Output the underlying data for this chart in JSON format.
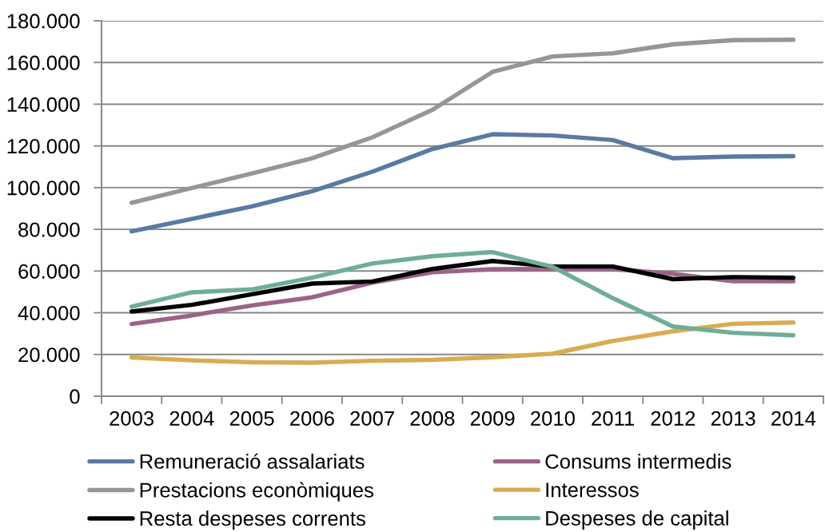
{
  "chart_data": {
    "type": "line",
    "categories": [
      "2003",
      "2004",
      "2005",
      "2006",
      "2007",
      "2008",
      "2009",
      "2010",
      "2011",
      "2012",
      "2013",
      "2014"
    ],
    "series": [
      {
        "name": "Remuneració assalariats",
        "color": "#5a7aa3",
        "values": [
          79000,
          85000,
          91000,
          98300,
          107600,
          118500,
          125600,
          125000,
          122800,
          114100,
          114900,
          115100
        ]
      },
      {
        "name": "Consums intermedis",
        "color": "#9b6487",
        "values": [
          34600,
          38700,
          43500,
          47400,
          54400,
          59400,
          60900,
          61000,
          61000,
          58700,
          55100,
          55100
        ]
      },
      {
        "name": "Prestacions econòmiques",
        "color": "#93969a",
        "values": [
          92700,
          99800,
          106800,
          114100,
          124100,
          137300,
          155500,
          162900,
          164400,
          168700,
          170700,
          170900
        ]
      },
      {
        "name": "Interessos",
        "color": "#d8ac52",
        "values": [
          18600,
          17200,
          16300,
          16100,
          17000,
          17400,
          18700,
          20400,
          26500,
          31100,
          34700,
          35300
        ]
      },
      {
        "name": "Resta despeses corrents",
        "color": "#000000",
        "values": [
          40600,
          43800,
          48900,
          54000,
          55000,
          61000,
          64800,
          62200,
          62200,
          56100,
          57100,
          56800
        ]
      },
      {
        "name": "Despeses de capital",
        "color": "#70ae96",
        "values": [
          42900,
          49800,
          51200,
          56800,
          63600,
          67100,
          69100,
          62000,
          47000,
          33400,
          30400,
          29200
        ]
      }
    ],
    "ylim": [
      0,
      180000
    ],
    "yticks": [
      0,
      {
        "value": 20000,
        "label": "20.000"
      },
      {
        "value": 40000,
        "label": "40.000"
      },
      {
        "value": 60000,
        "label": "60.000"
      },
      {
        "value": 80000,
        "label": "80.000"
      },
      {
        "value": 100000,
        "label": "100.000"
      },
      {
        "value": 120000,
        "label": "120.000"
      },
      {
        "value": 140000,
        "label": "140.000"
      },
      {
        "value": 160000,
        "label": "160.000"
      },
      {
        "value": 180000,
        "label": "180.000"
      }
    ],
    "grid": "y",
    "legend": "bottom",
    "marker": "none",
    "line_style": "solid"
  }
}
